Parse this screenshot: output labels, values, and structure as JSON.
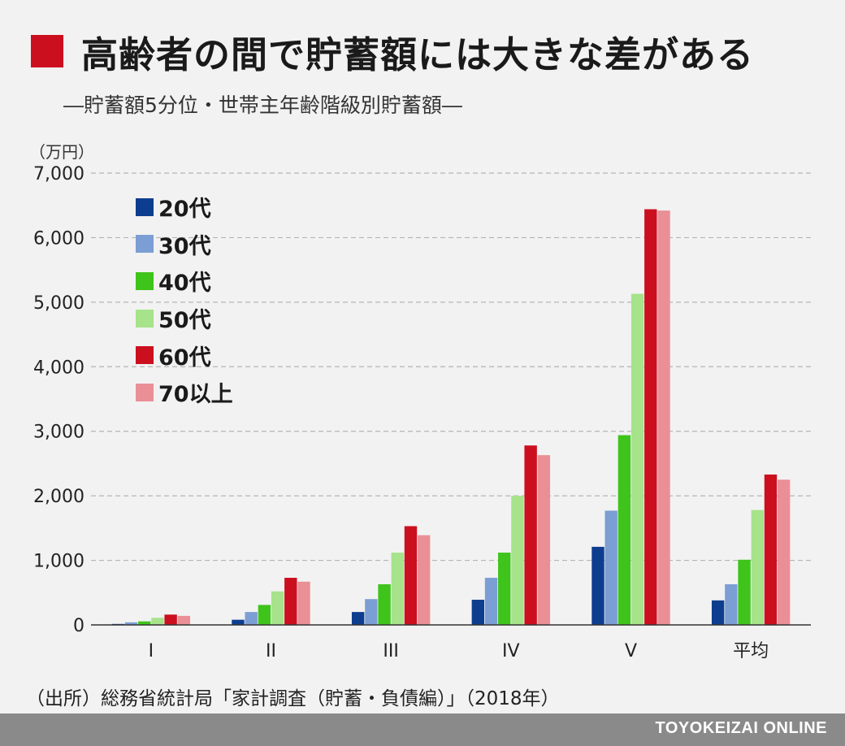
{
  "header": {
    "title": "高齢者の間で貯蓄額には大きな差がある",
    "subtitle": "―貯蓄額5分位・世帯主年齢階級別貯蓄額―"
  },
  "colors": {
    "accent": "#cc0f1e",
    "footer_bg": "#8a8a8a",
    "background": "#f2f2f2",
    "series": [
      "#0d3d8f",
      "#7b9ed4",
      "#3ec41a",
      "#a6e38a",
      "#cc0f1e",
      "#ea8f96"
    ]
  },
  "chart_data": {
    "type": "bar",
    "title": "高齢者の間で貯蓄額には大きな差がある",
    "subtitle": "―貯蓄額5分位・世帯主年齢階級別貯蓄額―",
    "ylabel": "（万円）",
    "xlabel": "",
    "ylim": [
      0,
      7000
    ],
    "yticks": [
      0,
      1000,
      2000,
      3000,
      4000,
      5000,
      6000,
      7000
    ],
    "ytick_labels": [
      "0",
      "1,000",
      "2,000",
      "3,000",
      "4,000",
      "5,000",
      "6,000",
      "7,000"
    ],
    "grid": true,
    "legend_position": "top-left",
    "categories": [
      "I",
      "II",
      "III",
      "IV",
      "V",
      "平均"
    ],
    "series": [
      {
        "name": "20代",
        "color": "#0d3d8f",
        "values": [
          15,
          80,
          200,
          390,
          1210,
          380
        ]
      },
      {
        "name": "30代",
        "color": "#7b9ed4",
        "values": [
          40,
          200,
          400,
          730,
          1770,
          630
        ]
      },
      {
        "name": "40代",
        "color": "#3ec41a",
        "values": [
          55,
          310,
          630,
          1120,
          2940,
          1010
        ]
      },
      {
        "name": "50代",
        "color": "#a6e38a",
        "values": [
          110,
          520,
          1120,
          2000,
          5130,
          1780
        ]
      },
      {
        "name": "60代",
        "color": "#cc0f1e",
        "values": [
          160,
          730,
          1530,
          2780,
          6440,
          2330
        ]
      },
      {
        "name": "70以上",
        "color": "#ea8f96",
        "values": [
          140,
          670,
          1390,
          2630,
          6420,
          2250
        ]
      }
    ]
  },
  "source": "（出所）総務省統計局「家計調査（貯蓄・負債編）」（2018年）",
  "footer": {
    "brand": "TOYOKEIZAI ONLINE"
  }
}
